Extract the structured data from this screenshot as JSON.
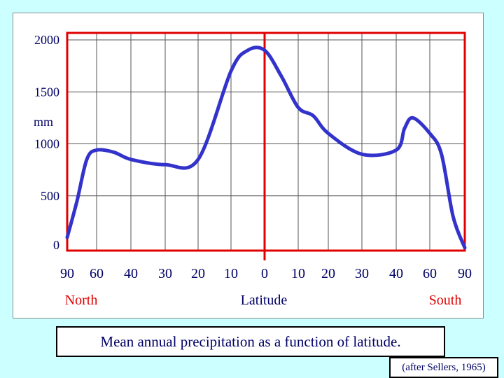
{
  "chart_data": {
    "type": "line",
    "title": "Mean annual precipitation as a function of latitude.",
    "source": "(after Sellers, 1965)",
    "ylabel": "mm",
    "xlabel": "Latitude",
    "hemisphere_labels": {
      "left": "North",
      "right": "South"
    },
    "ylim": [
      0,
      2000
    ],
    "y_ticks": [
      {
        "label": "2000",
        "value": 2000
      },
      {
        "label": "1500",
        "value": 1500
      },
      {
        "label": "1000",
        "value": 1000
      },
      {
        "label": "500",
        "value": 500
      },
      {
        "label": "0",
        "value": 0
      }
    ],
    "x_ticks": [
      {
        "label": "90",
        "value": -90
      },
      {
        "label": "60",
        "value": -60
      },
      {
        "label": "40",
        "value": -40
      },
      {
        "label": "30",
        "value": -30
      },
      {
        "label": "20",
        "value": -20
      },
      {
        "label": "10",
        "value": -10
      },
      {
        "label": "0",
        "value": 0
      },
      {
        "label": "10",
        "value": 10
      },
      {
        "label": "20",
        "value": 20
      },
      {
        "label": "30",
        "value": 30
      },
      {
        "label": "40",
        "value": 40
      },
      {
        "label": "60",
        "value": 60
      },
      {
        "label": "90",
        "value": 90
      }
    ],
    "grid": true,
    "series": [
      {
        "name": "Mean annual precipitation (mm)",
        "color": "#3333cc",
        "x": [
          -90,
          -80,
          -70,
          -60,
          -50,
          -40,
          -30,
          -20,
          -10,
          -5,
          0,
          5,
          10,
          15,
          20,
          30,
          40,
          45,
          50,
          60,
          70,
          80,
          90
        ],
        "y": [
          100,
          450,
          850,
          940,
          920,
          850,
          800,
          850,
          1700,
          1900,
          1900,
          1650,
          1350,
          1270,
          1100,
          900,
          940,
          1150,
          1250,
          1100,
          900,
          300,
          0
        ]
      }
    ],
    "colors": {
      "frame": "#e00000",
      "grid": "#555555",
      "background": "#ccffff",
      "text": "#000066"
    }
  }
}
